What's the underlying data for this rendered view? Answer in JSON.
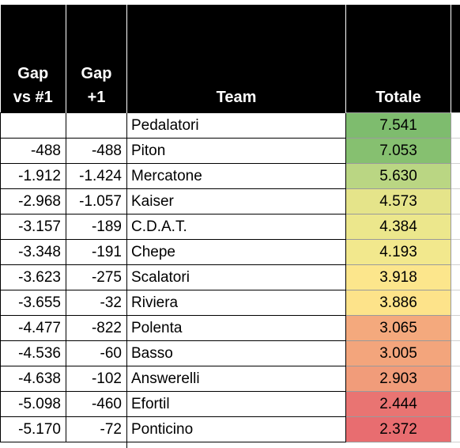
{
  "headers": {
    "gap_first_line1": "Gap",
    "gap_first_line2": "vs #1",
    "gap_prev_line1": "Gap",
    "gap_prev_line2": "+1",
    "team": "Team",
    "total": "Totale"
  },
  "rows": [
    {
      "gap_first": "",
      "gap_prev": "",
      "team": "Pedalatori",
      "total": "7.541",
      "color": "#7ebc6e"
    },
    {
      "gap_first": "-488",
      "gap_prev": "-488",
      "team": "Piton",
      "total": "7.053",
      "color": "#86c070"
    },
    {
      "gap_first": "-1.912",
      "gap_prev": "-1.424",
      "team": "Mercatone",
      "total": "5.630",
      "color": "#bad683"
    },
    {
      "gap_first": "-2.968",
      "gap_prev": "-1.057",
      "team": "Kaiser",
      "total": "4.573",
      "color": "#e5e48a"
    },
    {
      "gap_first": "-3.157",
      "gap_prev": "-189",
      "team": "C.D.A.T.",
      "total": "4.384",
      "color": "#ece78c"
    },
    {
      "gap_first": "-3.348",
      "gap_prev": "-191",
      "team": "Chepe",
      "total": "4.193",
      "color": "#f2e88d"
    },
    {
      "gap_first": "-3.623",
      "gap_prev": "-275",
      "team": "Scalatori",
      "total": "3.918",
      "color": "#fce68c"
    },
    {
      "gap_first": "-3.655",
      "gap_prev": "-32",
      "team": "Riviera",
      "total": "3.886",
      "color": "#fde38a"
    },
    {
      "gap_first": "-4.477",
      "gap_prev": "-822",
      "team": "Polenta",
      "total": "3.065",
      "color": "#f4a97d"
    },
    {
      "gap_first": "-4.536",
      "gap_prev": "-60",
      "team": "Basso",
      "total": "3.005",
      "color": "#f3a57c"
    },
    {
      "gap_first": "-4.638",
      "gap_prev": "-102",
      "team": "Answerelli",
      "total": "2.903",
      "color": "#f19c7a"
    },
    {
      "gap_first": "-5.098",
      "gap_prev": "-460",
      "team": "Efortil",
      "total": "2.444",
      "color": "#e97472"
    },
    {
      "gap_first": "-5.170",
      "gap_prev": "-72",
      "team": "Ponticino",
      "total": "2.372",
      "color": "#e86d70"
    }
  ]
}
